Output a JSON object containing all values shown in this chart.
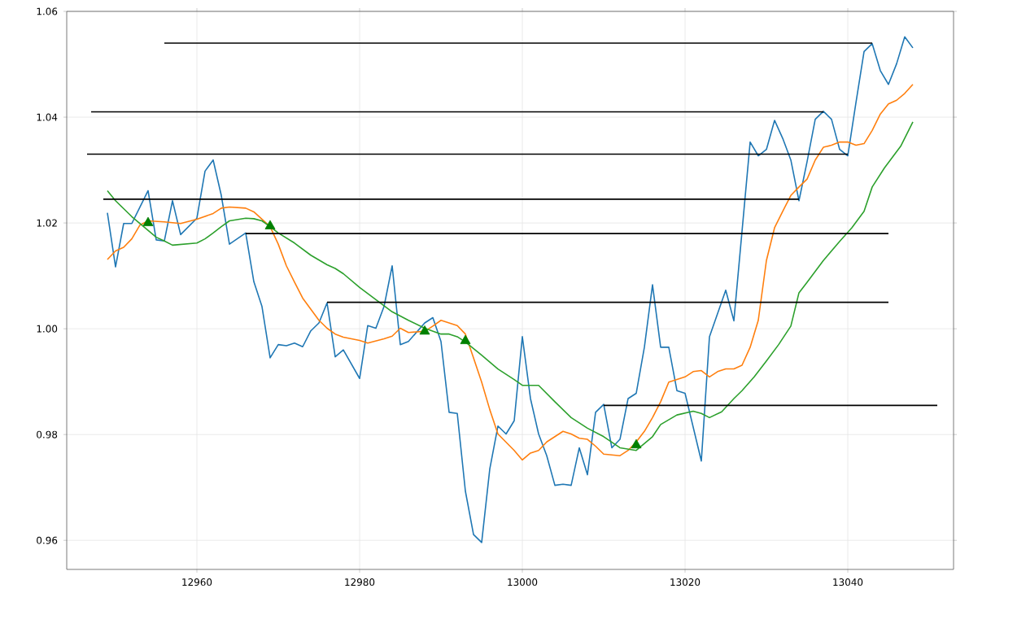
{
  "chart_data": {
    "type": "line",
    "xlim": [
      12944,
      13053
    ],
    "ylim": [
      0.9545,
      1.06
    ],
    "xticks": [
      12960,
      12980,
      13000,
      13020,
      13040
    ],
    "yticks": [
      0.96,
      0.98,
      {
        "value": 1.0,
        "label": "1.00"
      },
      1.02,
      1.04,
      1.06
    ],
    "grid": true,
    "series": [
      {
        "color": "#1f77b4",
        "x": [
          12949,
          12950,
          12951,
          12952,
          12954,
          12955,
          12956,
          12957,
          12958,
          12960,
          12961,
          12962,
          12963,
          12964,
          12966,
          12967,
          12968,
          12969,
          12970,
          12971,
          12972,
          12973,
          12974,
          12975,
          12976,
          12977,
          12978,
          12980,
          12981,
          12982,
          12983,
          12984,
          12985,
          12986,
          12988,
          12989,
          12990,
          12991,
          12992,
          12993,
          12994,
          12995,
          12996,
          12997,
          12998,
          12999,
          13000,
          13001,
          13002,
          13003,
          13004,
          13005,
          13006,
          13007,
          13008,
          13009,
          13010,
          13011,
          13012,
          13013,
          13014,
          13015,
          13016,
          13017,
          13018,
          13019,
          13020,
          13022,
          13023,
          13025,
          13026,
          13028,
          13029,
          13030,
          13031,
          13032,
          13033,
          13034,
          13035,
          13036,
          13037,
          13038,
          13039,
          13040,
          13041,
          13042,
          13043,
          13044,
          13045,
          13046,
          13047,
          13048
        ],
        "values": [
          1.0219,
          1.0117,
          1.0199,
          1.0199,
          1.0261,
          1.0168,
          1.0166,
          1.0242,
          1.0178,
          1.0209,
          1.0298,
          1.0319,
          1.0252,
          1.016,
          1.0181,
          1.0089,
          1.0042,
          0.9945,
          0.997,
          0.9968,
          0.9973,
          0.9966,
          0.9996,
          1.0011,
          1.0049,
          0.9947,
          0.996,
          0.9906,
          1.0006,
          1.0001,
          1.0042,
          1.0119,
          0.997,
          0.9976,
          1.0011,
          1.0021,
          0.9976,
          0.9842,
          0.984,
          0.9693,
          0.9611,
          0.9596,
          0.9735,
          0.9816,
          0.9801,
          0.9826,
          0.9985,
          0.9868,
          0.9801,
          0.976,
          0.9704,
          0.9706,
          0.9704,
          0.9775,
          0.9724,
          0.9842,
          0.9857,
          0.9775,
          0.9791,
          0.9868,
          0.9878,
          0.9965,
          1.0083,
          0.9965,
          0.9965,
          0.9883,
          0.9878,
          0.975,
          0.9985,
          1.0073,
          1.0015,
          1.0353,
          1.0327,
          1.0339,
          1.0394,
          1.036,
          1.0319,
          1.0242,
          1.0316,
          1.0396,
          1.0411,
          1.0396,
          1.0339,
          1.0327,
          1.0427,
          1.0524,
          1.0539,
          1.0488,
          1.0462,
          1.0501,
          1.0552,
          1.0531
        ]
      },
      {
        "color": "#ff7f0e",
        "x": [
          12949,
          12950,
          12951,
          12952,
          12953,
          12954,
          12956,
          12958,
          12960,
          12962,
          12963,
          12964,
          12966,
          12967,
          12969,
          12970,
          12971,
          12972,
          12973,
          12975,
          12976,
          12977,
          12978,
          12980,
          12981,
          12983,
          12984,
          12985,
          12986,
          12988,
          12989,
          12990,
          12991,
          12992,
          12993,
          12994,
          12995,
          12996,
          12997,
          12999,
          13000,
          13001,
          13002,
          13003,
          13005,
          13006,
          13007,
          13008,
          13009,
          13010,
          13012,
          13013,
          13014,
          13015,
          13016,
          13017,
          13018,
          13019,
          13020,
          13021,
          13022,
          13023,
          13024,
          13025,
          13026,
          13027,
          13028,
          13029,
          13030,
          13031,
          13032,
          13033,
          13034,
          13035,
          13036,
          13037,
          13038,
          13039,
          13040,
          13041,
          13042,
          13043,
          13044,
          13045,
          13046,
          13047,
          13048
        ],
        "values": [
          1.0131,
          1.0147,
          1.0154,
          1.017,
          1.0196,
          1.0204,
          1.0202,
          1.0199,
          1.0207,
          1.0218,
          1.0228,
          1.023,
          1.0228,
          1.0221,
          1.0193,
          1.016,
          1.0119,
          1.0088,
          1.0058,
          1.0016,
          1.0001,
          0.999,
          0.9984,
          0.9978,
          0.9973,
          0.9981,
          0.9986,
          1.0001,
          0.9993,
          0.9995,
          1.0005,
          1.0016,
          1.0011,
          1.0006,
          0.999,
          0.9945,
          0.9899,
          0.9847,
          0.9801,
          0.977,
          0.9752,
          0.9765,
          0.977,
          0.9786,
          0.9806,
          0.9801,
          0.9793,
          0.9791,
          0.9778,
          0.9763,
          0.976,
          0.977,
          0.9786,
          0.9806,
          0.9832,
          0.9862,
          0.9899,
          0.9904,
          0.9909,
          0.9919,
          0.9921,
          0.9909,
          0.9919,
          0.9924,
          0.9924,
          0.9931,
          0.9965,
          1.0016,
          1.0129,
          1.0191,
          1.0222,
          1.0252,
          1.0268,
          1.0283,
          1.0319,
          1.0343,
          1.0347,
          1.0353,
          1.0353,
          1.0347,
          1.035,
          1.0375,
          1.0406,
          1.0425,
          1.0432,
          1.0445,
          1.0462
        ]
      },
      {
        "color": "#2ca02c",
        "x": [
          12949,
          12950,
          12951,
          12952,
          12954,
          12955,
          12956,
          12957,
          12960,
          12961,
          12962,
          12963,
          12964,
          12966,
          12967,
          12968,
          12969,
          12970,
          12972,
          12974,
          12976,
          12977,
          12978,
          12980,
          12982,
          12984,
          12986,
          12988,
          12990,
          12991,
          12992,
          12993,
          12995,
          12997,
          12999,
          13000,
          13002,
          13004,
          13006,
          13008,
          13010,
          13012,
          13014,
          13016,
          13017,
          13019,
          13021,
          13022,
          13023,
          13024.5,
          13026,
          13027,
          13028.5,
          13030,
          13031.5,
          13033,
          13034,
          13035,
          13037,
          13039,
          13040.5,
          13042,
          13043,
          13044.5,
          13046.5,
          13048
        ],
        "values": [
          1.0261,
          1.0242,
          1.0227,
          1.0212,
          1.0186,
          1.0173,
          1.0166,
          1.0158,
          1.0162,
          1.017,
          1.0181,
          1.0193,
          1.0204,
          1.0209,
          1.0208,
          1.0204,
          1.0193,
          1.0181,
          1.0162,
          1.0139,
          1.0121,
          1.0114,
          1.0104,
          1.0078,
          1.0055,
          1.0032,
          1.0016,
          1.0001,
          0.999,
          0.999,
          0.9985,
          0.9975,
          0.995,
          0.9924,
          0.9904,
          0.9893,
          0.9893,
          0.9862,
          0.9832,
          0.9812,
          0.9796,
          0.9775,
          0.977,
          0.9796,
          0.9819,
          0.9837,
          0.9844,
          0.984,
          0.9832,
          0.9843,
          0.9868,
          0.9883,
          0.9909,
          0.9939,
          0.997,
          1.0005,
          1.0068,
          1.0088,
          1.0129,
          1.0165,
          1.0191,
          1.0222,
          1.0268,
          1.0304,
          1.0345,
          1.0391
        ]
      },
      {
        "color": "#000000",
        "x": [
          12956,
          13043
        ],
        "values": [
          1.054,
          1.054
        ]
      },
      {
        "color": "#000000",
        "x": [
          12947,
          13037
        ],
        "values": [
          1.041,
          1.041
        ]
      },
      {
        "color": "#000000",
        "x": [
          12946.5,
          13040
        ],
        "values": [
          1.033,
          1.033
        ]
      },
      {
        "color": "#000000",
        "x": [
          12948.5,
          13034
        ],
        "values": [
          1.0245,
          1.0245
        ]
      },
      {
        "color": "#000000",
        "x": [
          12966,
          13045
        ],
        "values": [
          1.018,
          1.018
        ]
      },
      {
        "color": "#000000",
        "x": [
          12976,
          13045
        ],
        "values": [
          1.005,
          1.005
        ]
      },
      {
        "color": "#000000",
        "x": [
          13010,
          13051
        ],
        "values": [
          0.9855,
          0.9855
        ]
      },
      {
        "type": "scatter",
        "marker": "triangle",
        "color": "#008000",
        "x": [
          12954,
          12969,
          12988,
          12993,
          13014
        ],
        "values": [
          1.02,
          1.0194,
          0.9995,
          0.9977,
          0.978
        ]
      }
    ]
  }
}
